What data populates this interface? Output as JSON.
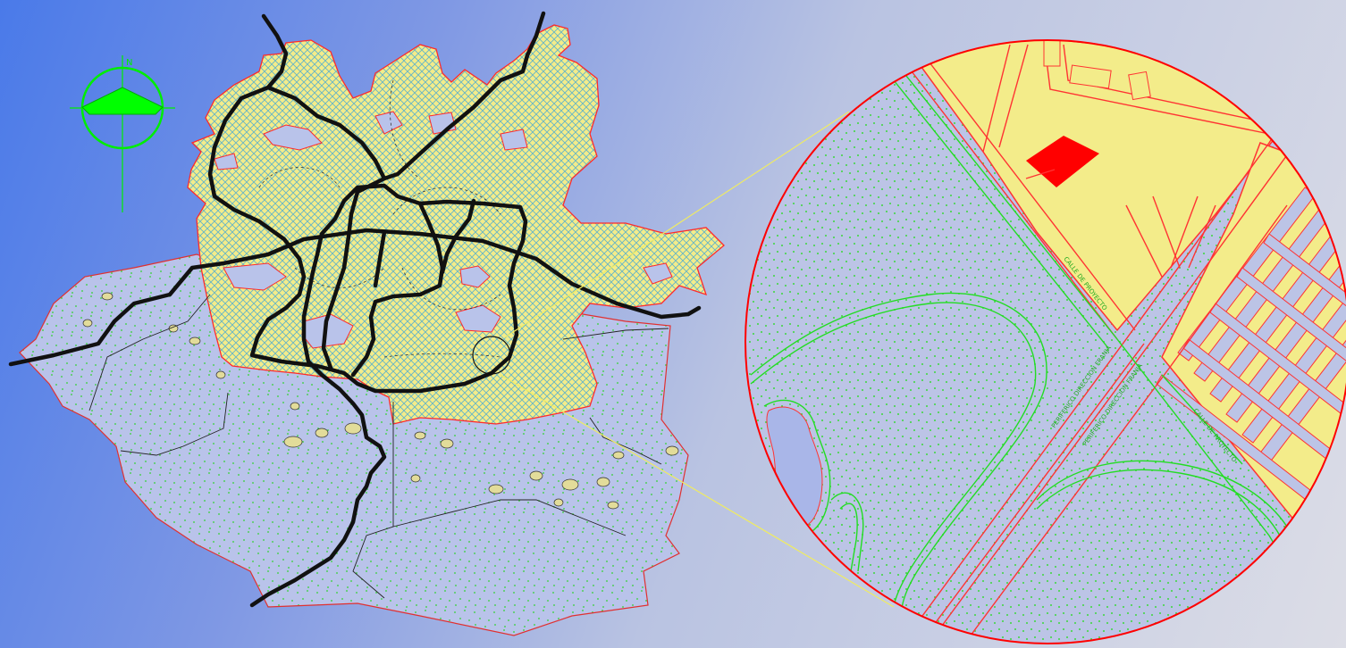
{
  "map": {
    "compass": {
      "north_label": "N",
      "color": "#00ff00"
    },
    "zoom": {
      "connector_color": "#ffff66",
      "circle_stroke": "#ff0000"
    },
    "colors": {
      "urban_fill": "#f3ec8a",
      "urban_outline": "#ff2a2a",
      "rural_fill": "#b9c3ea",
      "rural_dots": "#2fd22f",
      "roads": "#111111",
      "parcel": "#ff0000",
      "green_lines": "#22dd22"
    },
    "detail_labels": [
      "PERIFERICO DIRECCION FRANJA",
      "PERIFERICO DIRECCION FRANJA",
      "CALLE DE PROYECTO",
      "CALLE DE PROYECTO"
    ]
  }
}
